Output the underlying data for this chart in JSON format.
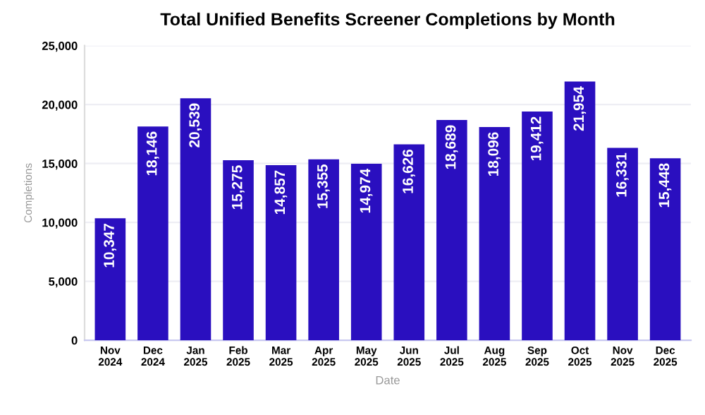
{
  "chart_data": {
    "type": "bar",
    "title": "Total Unified Benefits Screener Completions by Month",
    "xlabel": "Date",
    "ylabel": "Completions",
    "categories": [
      "Nov\n2024",
      "Dec\n2024",
      "Jan\n2025",
      "Feb\n2025",
      "Mar\n2025",
      "Apr\n2025",
      "May\n2025",
      "Jun\n2025",
      "Jul\n2025",
      "Aug\n2025",
      "Sep\n2025",
      "Oct\n2025",
      "Nov\n2025",
      "Dec\n2025"
    ],
    "values": [
      10347,
      18146,
      20539,
      15275,
      14857,
      15355,
      14974,
      16626,
      18689,
      18096,
      19412,
      21954,
      16331,
      15448
    ],
    "color": "#2a0fbf",
    "ylim": [
      0,
      25000
    ],
    "yticks": [
      {
        "value": 0,
        "label": "0"
      },
      {
        "value": 5000,
        "label": "5,000"
      },
      {
        "value": 10000,
        "label": "10,000"
      },
      {
        "value": 15000,
        "label": "15,000"
      },
      {
        "value": 20000,
        "label": "20,000"
      },
      {
        "value": 25000,
        "label": "25,000"
      }
    ],
    "value_labels": [
      "10,347",
      "18,146",
      "20,539",
      "15,275",
      "14,857",
      "15,355",
      "14,974",
      "16,626",
      "18,689",
      "18,096",
      "19,412",
      "21,954",
      "16,331",
      "15,448"
    ],
    "grid": "y"
  }
}
